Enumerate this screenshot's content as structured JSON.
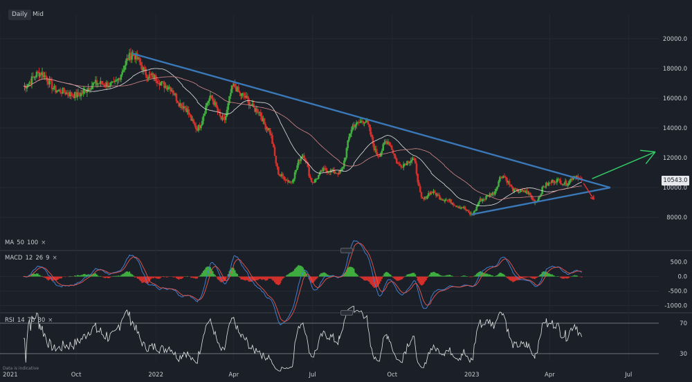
{
  "toolbar": {
    "daily": "Daily",
    "mid": "Mid"
  },
  "legends": {
    "ma": {
      "name": "MA",
      "p1": "50",
      "p2": "100",
      "close": "×"
    },
    "macd": {
      "name": "MACD",
      "p1": "12",
      "p2": "26",
      "p3": "9",
      "close": "×"
    },
    "rsi": {
      "name": "RSI",
      "p1": "14",
      "p2": "70",
      "p3": "30",
      "close": "×"
    }
  },
  "disclaimer": "Data is indicative",
  "colors": {
    "bg": "#1b1f27",
    "up": "#3fae3f",
    "down": "#d3302c",
    "trend": "#3a78b8",
    "ma50": "#e6e6e6",
    "ma100": "#d98c8c",
    "macd": "#3f7fd0",
    "signal": "#d9534f",
    "rsi": "#e6e6e6",
    "arrow_up": "#33cc66",
    "arrow_down": "#e03030"
  },
  "chart_data": {
    "type": "candlestick",
    "interval": "Daily",
    "price_axis": {
      "ticks": [
        "20000.0",
        "18000.0",
        "16000.0",
        "14000.0",
        "12000.0",
        "10000.0",
        "8000.0"
      ],
      "range": [
        6800,
        21200
      ]
    },
    "last_price": "10543.0",
    "x_axis_labels": [
      "2021",
      "Oct",
      "2022",
      "Apr",
      "Jul",
      "Oct",
      "2023",
      "Apr",
      "Jul"
    ],
    "price_anchors": [
      [
        "2021-08-01",
        16800
      ],
      [
        "2021-08-20",
        17700
      ],
      [
        "2021-09-10",
        16500
      ],
      [
        "2021-10-01",
        16200
      ],
      [
        "2021-10-25",
        17000
      ],
      [
        "2021-11-12",
        16900
      ],
      [
        "2021-12-05",
        18900
      ],
      [
        "2021-12-25",
        17500
      ],
      [
        "2022-01-15",
        16800
      ],
      [
        "2022-02-01",
        15500
      ],
      [
        "2022-02-18",
        14000
      ],
      [
        "2022-03-05",
        16000
      ],
      [
        "2022-03-20",
        14500
      ],
      [
        "2022-04-01",
        16800
      ],
      [
        "2022-04-10",
        16200
      ],
      [
        "2022-04-28",
        15200
      ],
      [
        "2022-05-10",
        14000
      ],
      [
        "2022-05-25",
        10800
      ],
      [
        "2022-06-05",
        10400
      ],
      [
        "2022-06-20",
        12200
      ],
      [
        "2022-07-01",
        10400
      ],
      [
        "2022-07-15",
        11200
      ],
      [
        "2022-08-01",
        11000
      ],
      [
        "2022-08-18",
        14200
      ],
      [
        "2022-08-30",
        14500
      ],
      [
        "2022-09-15",
        12200
      ],
      [
        "2022-09-25",
        13100
      ],
      [
        "2022-10-10",
        11500
      ],
      [
        "2022-10-25",
        11900
      ],
      [
        "2022-11-05",
        9200
      ],
      [
        "2022-11-15",
        9700
      ],
      [
        "2022-12-01",
        9200
      ],
      [
        "2022-12-20",
        8700
      ],
      [
        "2023-01-01",
        8200
      ],
      [
        "2023-01-12",
        9200
      ],
      [
        "2023-01-25",
        9600
      ],
      [
        "2023-02-05",
        10800
      ],
      [
        "2023-02-20",
        9800
      ],
      [
        "2023-03-05",
        9700
      ],
      [
        "2023-03-15",
        9100
      ],
      [
        "2023-03-28",
        10200
      ],
      [
        "2023-04-08",
        10500
      ],
      [
        "2023-04-20",
        10300
      ],
      [
        "2023-05-01",
        10800
      ],
      [
        "2023-05-08",
        10543
      ]
    ],
    "macd_axis": {
      "ticks": [
        "500.0",
        "0.0",
        "-500.0",
        "-1000.0"
      ],
      "range": [
        -1200,
        800
      ]
    },
    "rsi_axis": {
      "ticks": [
        "70",
        "30"
      ],
      "range": [
        20,
        80
      ]
    },
    "annotations": [
      {
        "type": "trendline",
        "label": "resistance",
        "from": [
          "2021-12-05",
          19000
        ],
        "to": [
          "2023-06-10",
          10000
        ]
      },
      {
        "type": "trendline",
        "label": "support",
        "from": [
          "2023-01-01",
          8200
        ],
        "to": [
          "2023-06-10",
          10000
        ]
      },
      {
        "type": "arrow",
        "direction": "up",
        "from": [
          "2023-05-20",
          10600
        ],
        "to": [
          "2023-08-01",
          12400
        ]
      },
      {
        "type": "arrow",
        "direction": "down",
        "from": [
          "2023-05-10",
          10300
        ],
        "to": [
          "2023-05-22",
          9200
        ]
      }
    ]
  }
}
